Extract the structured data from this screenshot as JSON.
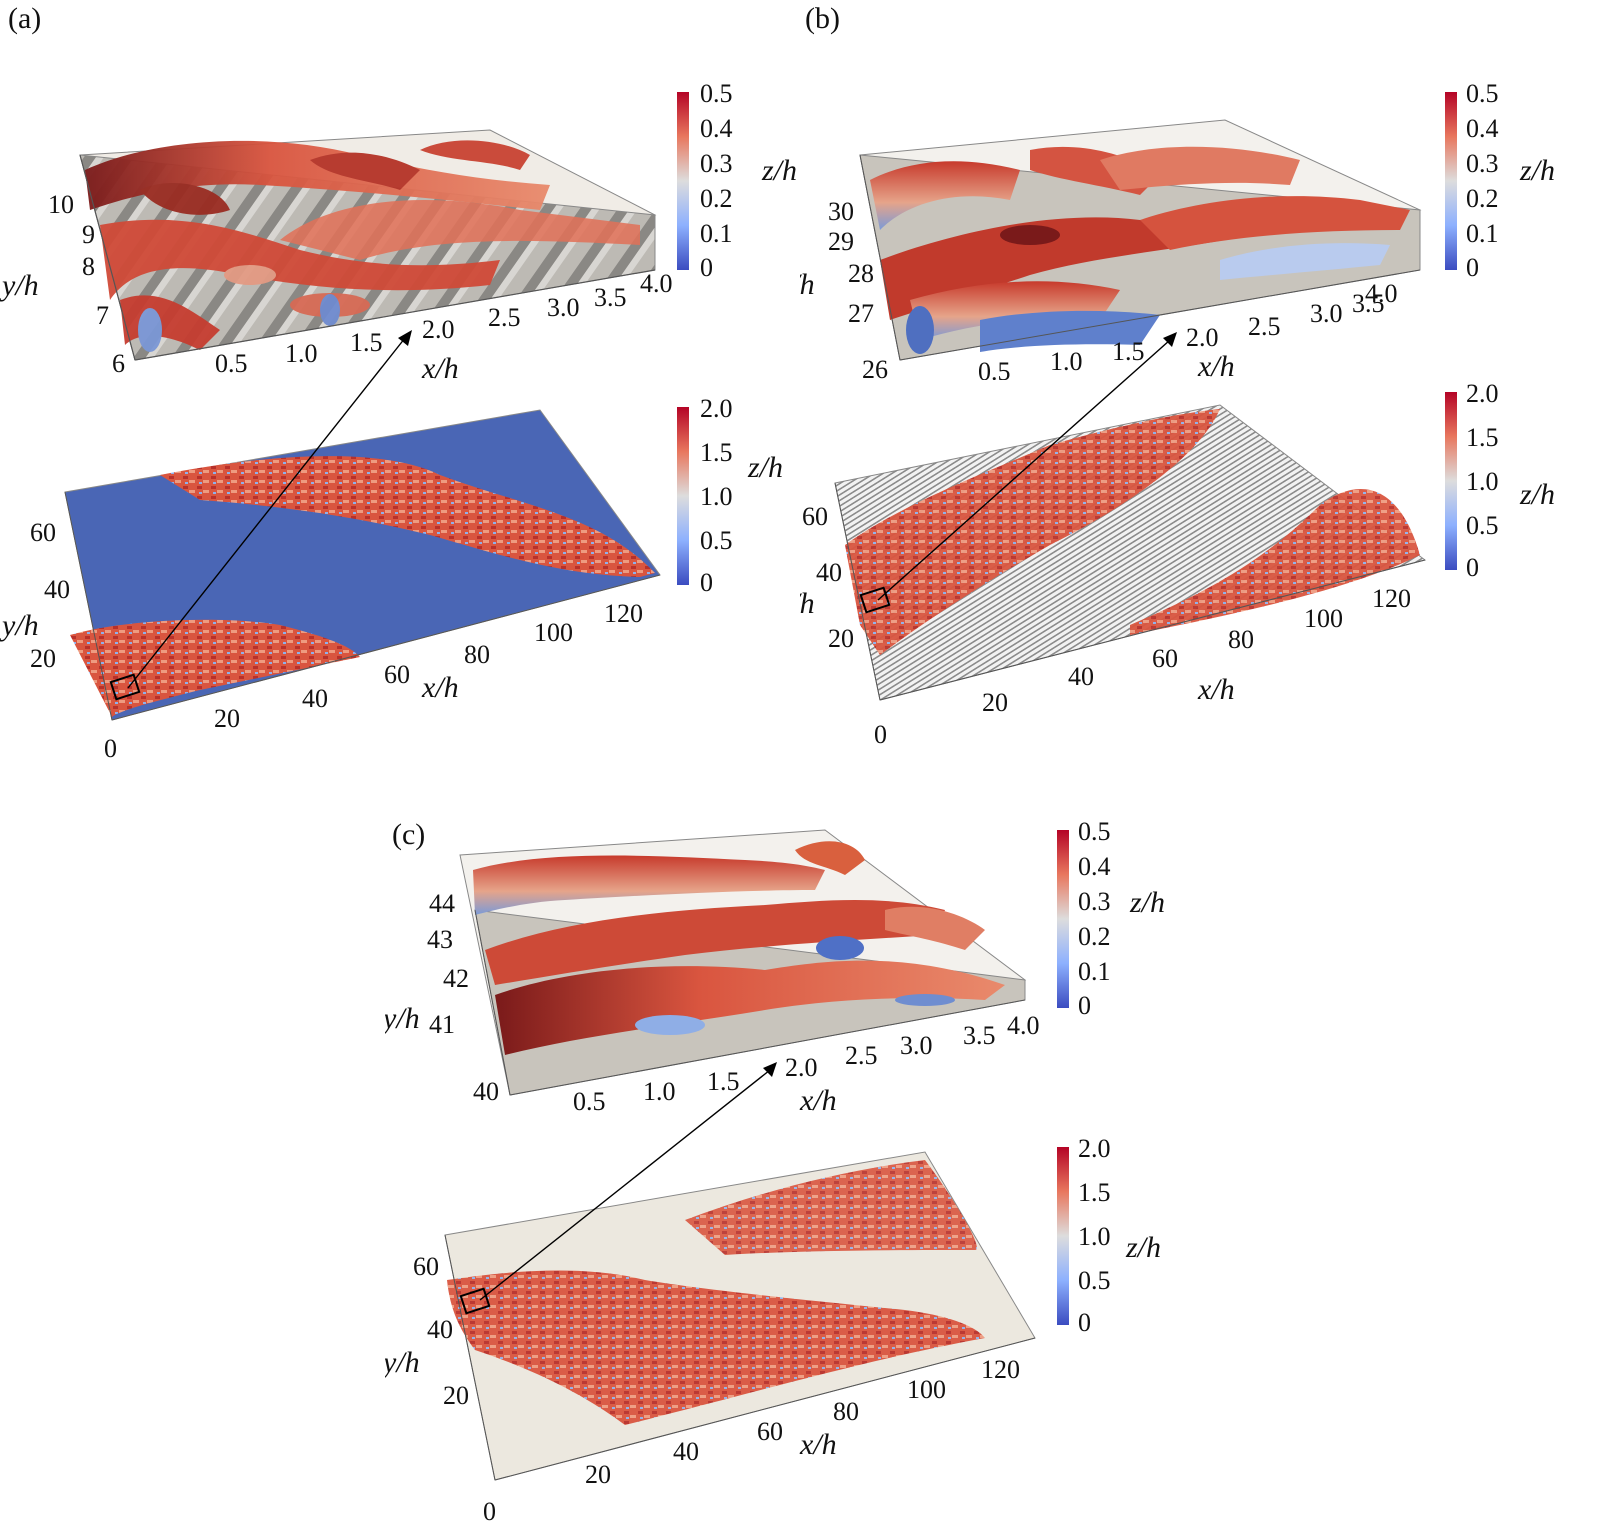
{
  "panels": [
    {
      "label": "(a)",
      "zoom": {
        "x_ticks": [
          "0.5",
          "1.0",
          "1.5",
          "2.0",
          "2.5",
          "3.0",
          "3.5",
          "4.0"
        ],
        "y_ticks": [
          "6",
          "7",
          "8",
          "9",
          "10"
        ],
        "xlabel": "x/h",
        "ylabel": "y/h",
        "colorbar": {
          "label": "z/h",
          "ticks": [
            "0.5",
            "0.4",
            "0.3",
            "0.2",
            "0.1",
            "0"
          ]
        }
      },
      "full": {
        "x_ticks": [
          "0",
          "20",
          "40",
          "60",
          "80",
          "100",
          "120"
        ],
        "y_ticks": [
          "20",
          "40",
          "60"
        ],
        "xlabel": "x/h",
        "ylabel": "y/h",
        "colorbar": {
          "label": "z/h",
          "ticks": [
            "2.0",
            "1.5",
            "1.0",
            "0.5",
            "0"
          ]
        }
      }
    },
    {
      "label": "(b)",
      "zoom": {
        "x_ticks": [
          "0.5",
          "1.0",
          "1.5",
          "2.0",
          "2.5",
          "3.0",
          "3.5",
          "4.0"
        ],
        "y_ticks": [
          "26",
          "27",
          "28",
          "29",
          "30"
        ],
        "xlabel": "x/h",
        "ylabel": "y/h",
        "colorbar": {
          "label": "z/h",
          "ticks": [
            "0.5",
            "0.4",
            "0.3",
            "0.2",
            "0.1",
            "0"
          ]
        }
      },
      "full": {
        "x_ticks": [
          "0",
          "20",
          "40",
          "60",
          "80",
          "100",
          "120"
        ],
        "y_ticks": [
          "20",
          "40",
          "60"
        ],
        "xlabel": "x/h",
        "ylabel": "y/h",
        "colorbar": {
          "label": "z/h",
          "ticks": [
            "2.0",
            "1.5",
            "1.0",
            "0.5",
            "0"
          ]
        }
      }
    },
    {
      "label": "(c)",
      "zoom": {
        "x_ticks": [
          "0.5",
          "1.0",
          "1.5",
          "2.0",
          "2.5",
          "3.0",
          "3.5",
          "4.0"
        ],
        "y_ticks": [
          "40",
          "41",
          "42",
          "43",
          "44"
        ],
        "xlabel": "x/h",
        "ylabel": "y/h",
        "colorbar": {
          "label": "z/h",
          "ticks": [
            "0.5",
            "0.4",
            "0.3",
            "0.2",
            "0.1",
            "0"
          ]
        }
      },
      "full": {
        "x_ticks": [
          "0",
          "20",
          "40",
          "60",
          "80",
          "100",
          "120"
        ],
        "y_ticks": [
          "20",
          "40",
          "60"
        ],
        "xlabel": "x/h",
        "ylabel": "y/h",
        "colorbar": {
          "label": "z/h",
          "ticks": [
            "2.0",
            "1.5",
            "1.0",
            "0.5",
            "0"
          ]
        }
      }
    }
  ],
  "colors": {
    "colormap_low": "#3b4cc0",
    "colormap_mid": "#dddddd",
    "colormap_high": "#b40426",
    "floor_a": "#4a66b5",
    "floor_b": "#e6e6e6",
    "floor_c": "#ece8df",
    "zoom_floor": "#c8c4bc"
  }
}
